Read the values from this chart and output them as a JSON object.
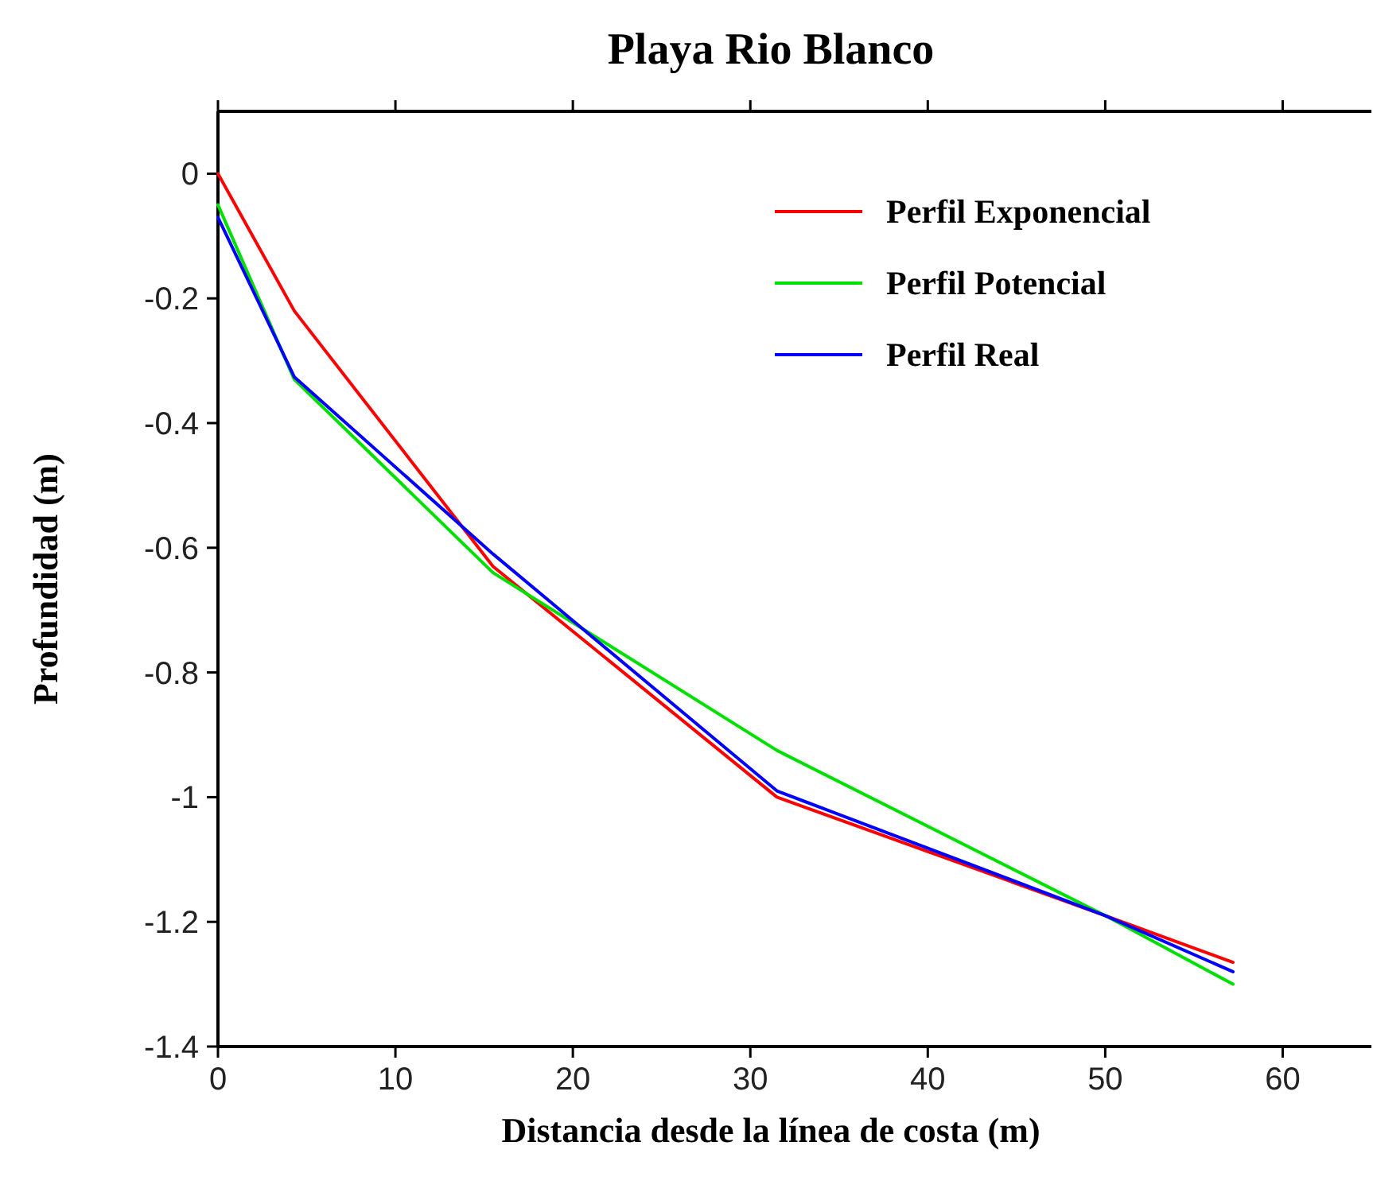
{
  "chart_data": {
    "type": "line",
    "title": "Playa Rio Blanco",
    "xlabel": "Distancia desde la línea de costa (m)",
    "ylabel": "Profundidad (m)",
    "xlim": [
      0,
      65
    ],
    "xticks": [
      0,
      10,
      20,
      30,
      40,
      50,
      60
    ],
    "ylim": [
      -1.4,
      0.1
    ],
    "yticks": [
      0,
      -0.2,
      -0.4,
      -0.6,
      -0.8,
      -1,
      -1.2,
      -1.4
    ],
    "x": [
      0,
      4.3,
      15.5,
      31.5,
      50,
      57.2
    ],
    "legend": "top right",
    "grid": false,
    "marker": "none",
    "line_style": "solid",
    "series": [
      {
        "name": "Perfil Exponencial",
        "color": "#ff0000",
        "values": [
          0,
          -0.22,
          -0.63,
          -1.0,
          -1.19,
          -1.265
        ]
      },
      {
        "name": "Perfil Potencial",
        "color": "#00e000",
        "values": [
          -0.05,
          -0.33,
          -0.64,
          -0.925,
          -1.19,
          -1.3
        ]
      },
      {
        "name": "Perfil Real",
        "color": "#0000ff",
        "values": [
          -0.07,
          -0.326,
          -0.61,
          -0.99,
          -1.19,
          -1.28
        ]
      }
    ]
  }
}
